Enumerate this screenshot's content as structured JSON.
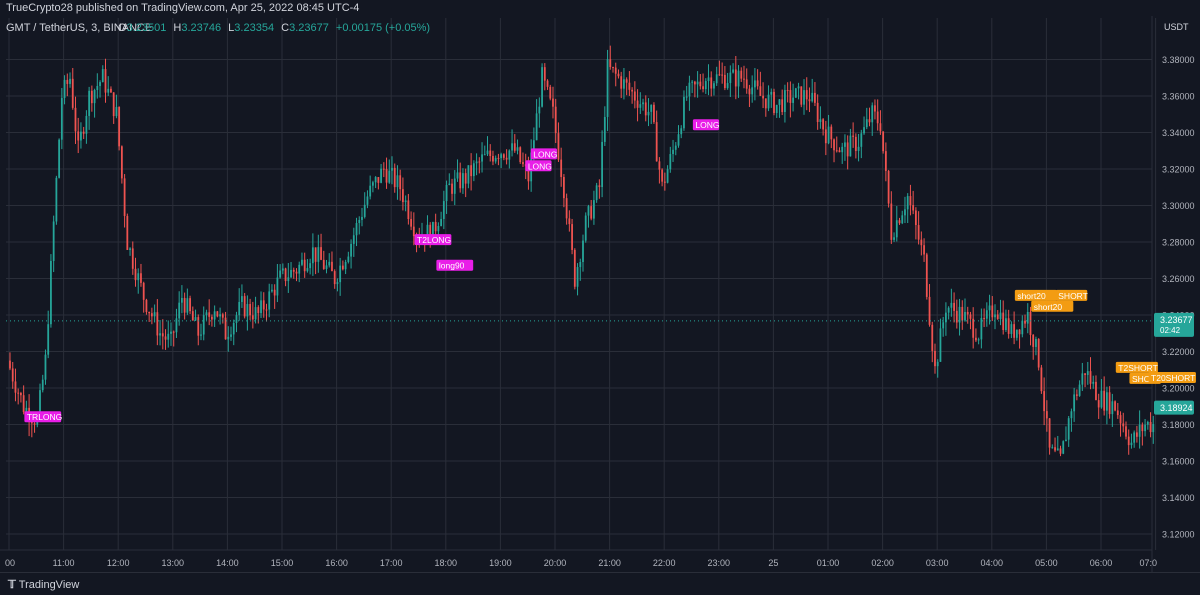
{
  "header": {
    "published": "TrueCrypto28 published on TradingView.com, Apr 25, 2022 08:45 UTC-4",
    "symbol": "GMT / TetherUS, 3, BINANCE",
    "o_label": "O",
    "o_value": "3.23501",
    "h_label": "H",
    "h_value": "3.23746",
    "l_label": "L",
    "l_value": "3.23354",
    "c_label": "C",
    "c_value": "3.23677",
    "change": "+0.00175 (+0.05%)"
  },
  "price_axis": {
    "unit": "USDT",
    "current_price": "3.23677",
    "countdown": "02:42",
    "marker_price": "3.18924"
  },
  "footer": {
    "logo_icon": "tradingview-logo-icon",
    "brand": "TradingView"
  },
  "colors": {
    "up": "#26a69a",
    "down": "#ef5350",
    "bg": "#131722",
    "grid": "#2a2e39",
    "long": "#e91ee8",
    "short": "#f39c12",
    "price_marker": "#26a69a"
  },
  "chart_data": {
    "type": "candlestick",
    "title": "GMT / TetherUS, 3, BINANCE",
    "ylabel": "USDT",
    "ylim": [
      3.1,
      3.4
    ],
    "y_ticks": [
      "3.12000",
      "3.14000",
      "3.16000",
      "3.18000",
      "3.20000",
      "3.22000",
      "3.24000",
      "3.26000",
      "3.28000",
      "3.30000",
      "3.32000",
      "3.34000",
      "3.36000",
      "3.38000"
    ],
    "x_ticks": [
      "00",
      "11:00",
      "12:00",
      "13:00",
      "14:00",
      "15:00",
      "16:00",
      "17:00",
      "18:00",
      "19:00",
      "20:00",
      "21:00",
      "22:00",
      "23:00",
      "25",
      "01:00",
      "02:00",
      "03:00",
      "04:00",
      "05:00",
      "06:00",
      "07:0"
    ],
    "x_range": [
      "10:00",
      "07:00"
    ],
    "price_path": [
      [
        10.0,
        3.215
      ],
      [
        10.3,
        3.19
      ],
      [
        10.55,
        3.182
      ],
      [
        10.7,
        3.215
      ],
      [
        10.85,
        3.29
      ],
      [
        11.0,
        3.36
      ],
      [
        11.15,
        3.37
      ],
      [
        11.3,
        3.33
      ],
      [
        11.5,
        3.36
      ],
      [
        11.75,
        3.37
      ],
      [
        12.0,
        3.35
      ],
      [
        12.2,
        3.28
      ],
      [
        12.5,
        3.25
      ],
      [
        12.8,
        3.23
      ],
      [
        13.0,
        3.225
      ],
      [
        13.2,
        3.25
      ],
      [
        13.5,
        3.23
      ],
      [
        13.8,
        3.245
      ],
      [
        14.0,
        3.23
      ],
      [
        14.3,
        3.245
      ],
      [
        14.6,
        3.24
      ],
      [
        15.0,
        3.26
      ],
      [
        15.3,
        3.265
      ],
      [
        15.6,
        3.275
      ],
      [
        16.0,
        3.26
      ],
      [
        16.3,
        3.28
      ],
      [
        16.6,
        3.305
      ],
      [
        16.9,
        3.32
      ],
      [
        17.2,
        3.31
      ],
      [
        17.5,
        3.285
      ],
      [
        17.8,
        3.285
      ],
      [
        18.1,
        3.31
      ],
      [
        18.4,
        3.315
      ],
      [
        18.7,
        3.325
      ],
      [
        19.0,
        3.33
      ],
      [
        19.3,
        3.33
      ],
      [
        19.55,
        3.315
      ],
      [
        19.8,
        3.37
      ],
      [
        20.0,
        3.35
      ],
      [
        20.2,
        3.31
      ],
      [
        20.4,
        3.26
      ],
      [
        20.6,
        3.29
      ],
      [
        20.85,
        3.31
      ],
      [
        21.0,
        3.375
      ],
      [
        21.2,
        3.37
      ],
      [
        21.5,
        3.36
      ],
      [
        21.8,
        3.35
      ],
      [
        22.0,
        3.31
      ],
      [
        22.2,
        3.33
      ],
      [
        22.45,
        3.36
      ],
      [
        22.8,
        3.37
      ],
      [
        23.1,
        3.37
      ],
      [
        23.5,
        3.37
      ],
      [
        23.8,
        3.36
      ],
      [
        24.1,
        3.355
      ],
      [
        24.4,
        3.36
      ],
      [
        24.7,
        3.36
      ],
      [
        25.0,
        3.34
      ],
      [
        25.3,
        3.33
      ],
      [
        25.6,
        3.335
      ],
      [
        25.85,
        3.35
      ],
      [
        26.0,
        3.345
      ],
      [
        26.2,
        3.285
      ],
      [
        26.5,
        3.305
      ],
      [
        26.8,
        3.27
      ],
      [
        27.0,
        3.21
      ],
      [
        27.2,
        3.245
      ],
      [
        27.5,
        3.24
      ],
      [
        27.8,
        3.23
      ],
      [
        28.1,
        3.245
      ],
      [
        28.4,
        3.23
      ],
      [
        28.7,
        3.24
      ],
      [
        28.9,
        3.215
      ],
      [
        29.1,
        3.165
      ],
      [
        29.3,
        3.16
      ],
      [
        29.5,
        3.19
      ],
      [
        29.75,
        3.21
      ],
      [
        30.0,
        3.195
      ],
      [
        30.3,
        3.19
      ],
      [
        30.6,
        3.17
      ],
      [
        30.85,
        3.18
      ],
      [
        31.0,
        3.18
      ]
    ],
    "last_price": 3.23677,
    "annotations": [
      {
        "label": "TRLONG",
        "type": "long",
        "time": 10.3,
        "price": 3.184
      },
      {
        "label": "T2LONG",
        "type": "long",
        "time": 17.45,
        "price": 3.281
      },
      {
        "label": "long90",
        "type": "long",
        "time": 17.85,
        "price": 3.267
      },
      {
        "label": "LONG",
        "type": "long",
        "time": 19.48,
        "price": 3.3215
      },
      {
        "label": "LONG",
        "type": "long",
        "time": 19.58,
        "price": 3.328
      },
      {
        "label": "LONG",
        "type": "long",
        "time": 22.55,
        "price": 3.344
      },
      {
        "label": "short20",
        "type": "short",
        "time": 28.45,
        "price": 3.2505
      },
      {
        "label": "short20",
        "type": "short",
        "time": 28.75,
        "price": 3.2445
      },
      {
        "label": "SHORT",
        "type": "short",
        "time": 29.2,
        "price": 3.2505
      },
      {
        "label": "T2SHORT",
        "type": "short",
        "time": 30.3,
        "price": 3.211
      },
      {
        "label": "SHORT",
        "type": "short",
        "time": 30.55,
        "price": 3.205
      },
      {
        "label": "T20SHORT",
        "type": "short",
        "time": 30.9,
        "price": 3.2055
      }
    ]
  }
}
